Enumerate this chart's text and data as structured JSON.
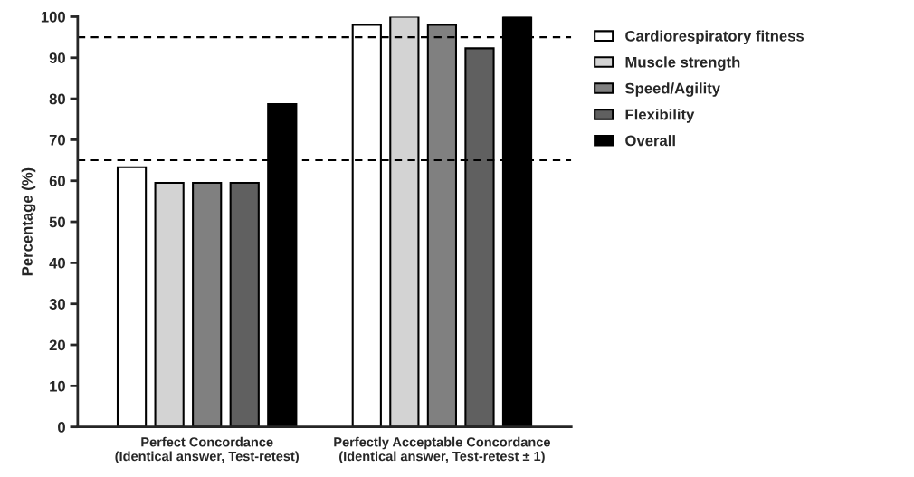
{
  "chart_data": {
    "type": "bar",
    "categories": [
      "Perfect Concordance\n(Identical answer, Test-retest)",
      "Perfectly Acceptable Concordance\n(Identical answer, Test-retest ± 1)"
    ],
    "series": [
      {
        "name": "Cardiorespiratory fitness",
        "color": "#ffffff",
        "values": [
          63.3,
          98
        ]
      },
      {
        "name": "Muscle strength",
        "color": "#d3d3d3",
        "values": [
          59.5,
          100
        ]
      },
      {
        "name": "Speed/Agility",
        "color": "#808080",
        "values": [
          59.5,
          98
        ]
      },
      {
        "name": "Flexibility",
        "color": "#606060",
        "values": [
          59.5,
          92.3
        ]
      },
      {
        "name": "Overall",
        "color": "#000000",
        "values": [
          78.7,
          100
        ]
      }
    ],
    "ylabel": "Percentage (%)",
    "ylim": [
      0,
      100
    ],
    "yticks": [
      0,
      10,
      20,
      30,
      40,
      50,
      60,
      70,
      80,
      90,
      100
    ],
    "ref_lines": [
      {
        "axis": "y",
        "value": 65,
        "line_style": "dashed",
        "color": "#000000"
      },
      {
        "axis": "y",
        "value": 95,
        "line_style": "dashed",
        "color": "#000000"
      }
    ],
    "grid": false,
    "legend": "right"
  }
}
